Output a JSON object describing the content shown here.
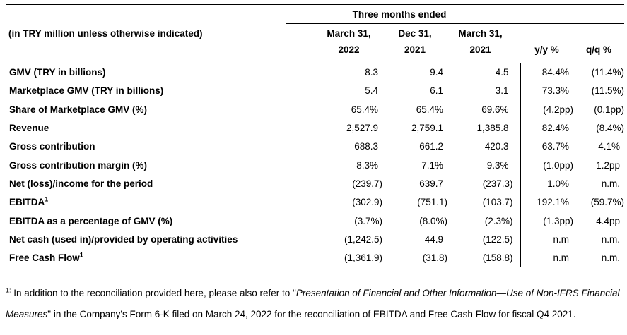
{
  "table": {
    "period_header": "Three months ended",
    "unit_label": "(in TRY million unless otherwise indicated)",
    "columns": [
      {
        "line1": "March 31,",
        "line2": "2022"
      },
      {
        "line1": "Dec 31,",
        "line2": "2021"
      },
      {
        "line1": "March 31,",
        "line2": "2021"
      },
      {
        "line1": "",
        "line2": "y/y %"
      },
      {
        "line1": "",
        "line2": "q/q %"
      }
    ],
    "rows": [
      {
        "label": "GMV (TRY in billions)",
        "sup": "",
        "values": [
          "8.3",
          "9.4",
          "4.5",
          "84.4%",
          "(11.4%)"
        ]
      },
      {
        "label": "Marketplace GMV (TRY in billions)",
        "sup": "",
        "values": [
          "5.4",
          "6.1",
          "3.1",
          "73.3%",
          "(11.5%)"
        ]
      },
      {
        "label": "Share of Marketplace GMV (%)",
        "sup": "",
        "values": [
          "65.4%",
          "65.4%",
          "69.6%",
          "(4.2pp)",
          "(0.1pp)"
        ]
      },
      {
        "label": "Revenue",
        "sup": "",
        "values": [
          "2,527.9",
          "2,759.1",
          "1,385.8",
          "82.4%",
          "(8.4%)"
        ]
      },
      {
        "label": "Gross contribution",
        "sup": "",
        "values": [
          "688.3",
          "661.2",
          "420.3",
          "63.7%",
          "4.1%"
        ]
      },
      {
        "label": "Gross contribution margin (%)",
        "sup": "",
        "values": [
          "8.3%",
          "7.1%",
          "9.3%",
          "(1.0pp)",
          "1.2pp"
        ]
      },
      {
        "label": "Net (loss)/income for the period",
        "sup": "",
        "values": [
          "(239.7)",
          "639.7",
          "(237.3)",
          "1.0%",
          "n.m."
        ]
      },
      {
        "label": "EBITDA",
        "sup": "1",
        "values": [
          "(302.9)",
          "(751.1)",
          "(103.7)",
          "192.1%",
          "(59.7%)"
        ]
      },
      {
        "label": "EBITDA as a percentage of GMV (%)",
        "sup": "",
        "values": [
          "(3.7%)",
          "(8.0%)",
          "(2.3%)",
          "(1.3pp)",
          "4.4pp"
        ]
      },
      {
        "label": "Net cash (used in)/provided by operating activities",
        "sup": "",
        "values": [
          "(1,242.5)",
          "44.9",
          "(122.5)",
          "n.m",
          "n.m."
        ]
      },
      {
        "label": "Free Cash Flow",
        "sup": "1",
        "values": [
          "(1,361.9)",
          "(31.8)",
          "(158.8)",
          "n.m",
          "n.m."
        ]
      }
    ]
  },
  "footnote": {
    "sup": "1:",
    "pre": " In addition to the reconciliation provided here, please also refer to \"",
    "italic": "Presentation of Financial and Other Information—Use of Non-IFRS Financial Measures",
    "post": "\" in the Company's Form 6-K filed on March 24, 2022 for the reconciliation of EBITDA and Free Cash Flow for fiscal Q4 2021."
  }
}
